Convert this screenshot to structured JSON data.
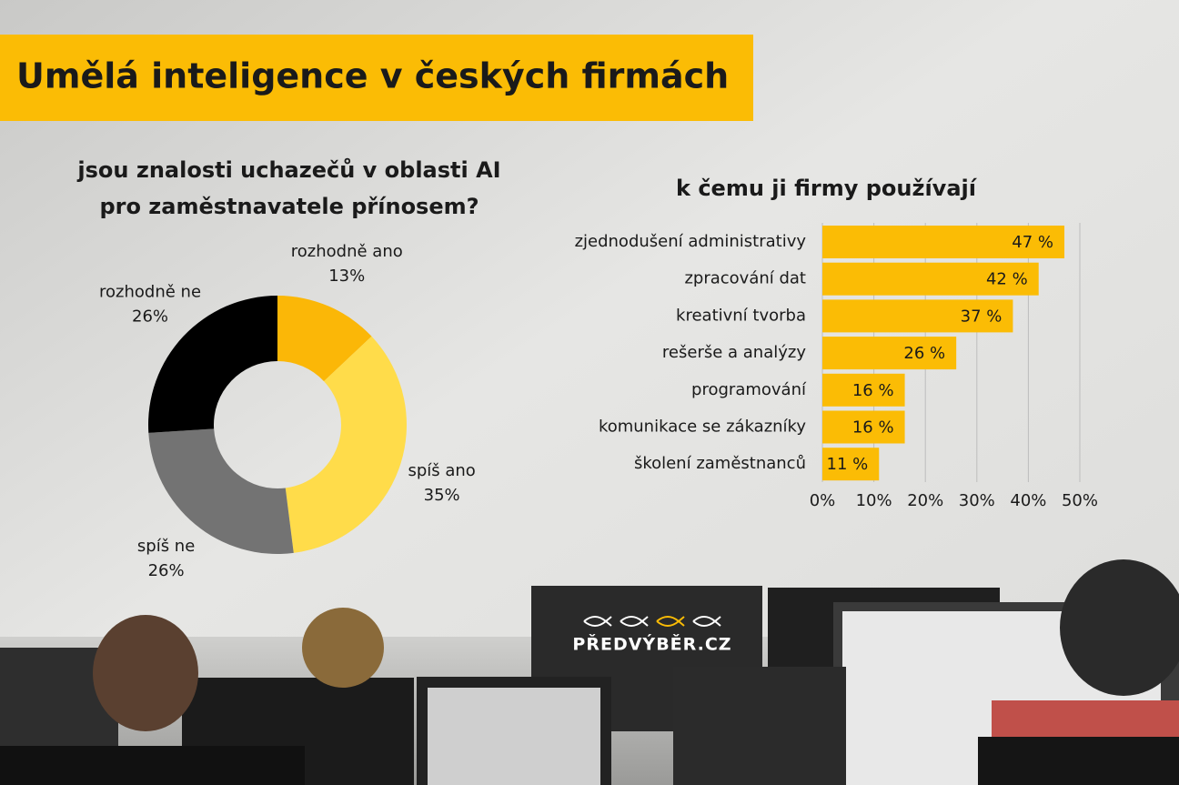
{
  "title": "Umělá inteligence v českých firmách",
  "logo": "PŘEDVÝBĚR.CZ",
  "chart_data": [
    {
      "type": "donut",
      "title": [
        "jsou znalosti uchazečů v oblasti AI",
        "pro zaměstnavatele přínosem?"
      ],
      "categories": [
        "rozhodně ano",
        "spíš ano",
        "spíš ne",
        "rozhodně ne"
      ],
      "values": [
        13,
        35,
        26,
        26
      ],
      "value_labels": [
        "13%",
        "35%",
        "26%",
        "26%"
      ],
      "colors": [
        "#fbb707",
        "#ffdc4a",
        "#737373",
        "#000000"
      ]
    },
    {
      "type": "hbar",
      "title": "k čemu ji firmy používají",
      "categories": [
        "zjednodušení administrativy",
        "zpracování dat",
        "kreativní tvorba",
        "rešerše a analýzy",
        "programování",
        "komunikace se zákazníky",
        "školení zaměstnanců"
      ],
      "values": [
        47,
        42,
        37,
        26,
        16,
        16,
        11
      ],
      "value_labels": [
        "47 %",
        "42 %",
        "37 %",
        "26 %",
        "16 %",
        "16 %",
        "11 %"
      ],
      "color": "#fbbc05",
      "xlim": [
        0,
        50
      ],
      "xticks": [
        {
          "value": 0,
          "label": "0%"
        },
        {
          "value": 10,
          "label": "10%"
        },
        {
          "value": 20,
          "label": "20%"
        },
        {
          "value": 30,
          "label": "30%"
        },
        {
          "value": 40,
          "label": "40%"
        },
        {
          "value": 50,
          "label": "50%"
        }
      ],
      "grid": true
    }
  ]
}
